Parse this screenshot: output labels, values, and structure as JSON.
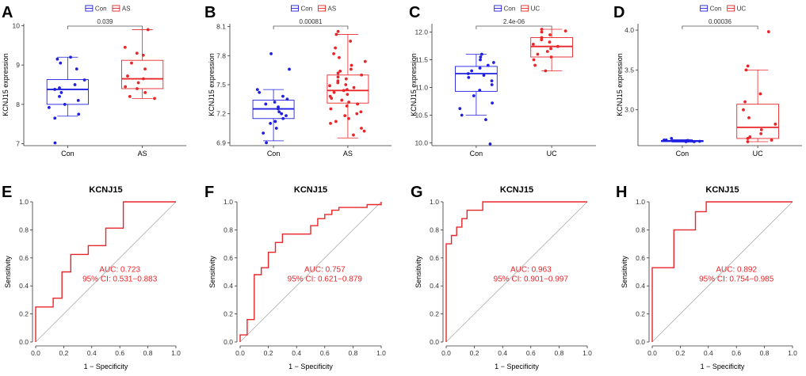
{
  "colors": {
    "con": "#1f1fe0",
    "case": "#e8262a",
    "diag": "#aaaaaa",
    "axis": "#333333"
  },
  "chart_data": [
    {
      "type": "box",
      "panel": "A",
      "title": "",
      "ylabel": "KCNJ15 expression",
      "legend": [
        "Con",
        "AS"
      ],
      "categories": [
        "Con",
        "AS"
      ],
      "ylim": [
        6.95,
        10.05
      ],
      "yticks": [
        7,
        8,
        9,
        10
      ],
      "ytick_labels": [
        "7",
        "8",
        "9",
        "10"
      ],
      "pvalue": "0.039",
      "groups": [
        {
          "name": "Con",
          "box": {
            "q1": 8.0,
            "median": 8.38,
            "q3": 8.63,
            "whisker_low": 7.7,
            "whisker_high": 9.2
          },
          "points": [
            7.02,
            7.65,
            7.75,
            7.92,
            8.0,
            8.1,
            8.2,
            8.3,
            8.38,
            8.42,
            8.5,
            8.62,
            8.9,
            9.05,
            9.15,
            9.2
          ]
        },
        {
          "name": "AS",
          "box": {
            "q1": 8.4,
            "median": 8.65,
            "q3": 9.12,
            "whisker_low": 8.15,
            "whisker_high": 9.9
          },
          "points": [
            8.15,
            8.2,
            8.3,
            8.4,
            8.45,
            8.55,
            8.65,
            8.72,
            8.9,
            9.05,
            9.25,
            9.3,
            9.45,
            9.9
          ]
        }
      ]
    },
    {
      "type": "box",
      "panel": "B",
      "title": "",
      "ylabel": "KCNJ15 expression",
      "legend": [
        "Con",
        "AS"
      ],
      "categories": [
        "Con",
        "AS"
      ],
      "ylim": [
        6.87,
        8.13
      ],
      "yticks": [
        6.9,
        7.2,
        7.5,
        7.8,
        8.1
      ],
      "ytick_labels": [
        "6.9",
        "7.2",
        "7.5",
        "7.8",
        "8.1"
      ],
      "pvalue": "0.00081",
      "groups": [
        {
          "name": "Con",
          "box": {
            "q1": 7.15,
            "median": 7.25,
            "q3": 7.34,
            "whisker_low": 6.92,
            "whisker_high": 7.45
          },
          "points": [
            6.9,
            7.0,
            7.05,
            7.1,
            7.12,
            7.15,
            7.18,
            7.2,
            7.22,
            7.25,
            7.27,
            7.3,
            7.32,
            7.35,
            7.38,
            7.42,
            7.45,
            7.66,
            7.82
          ]
        },
        {
          "name": "AS",
          "box": {
            "q1": 7.31,
            "median": 7.44,
            "q3": 7.6,
            "whisker_low": 6.95,
            "whisker_high": 8.02
          },
          "points": [
            6.98,
            7.02,
            7.05,
            7.1,
            7.12,
            7.15,
            7.18,
            7.2,
            7.22,
            7.25,
            7.28,
            7.3,
            7.32,
            7.34,
            7.36,
            7.38,
            7.4,
            7.42,
            7.44,
            7.45,
            7.47,
            7.49,
            7.5,
            7.52,
            7.54,
            7.56,
            7.58,
            7.6,
            7.62,
            7.64,
            7.66,
            7.7,
            7.74,
            7.78,
            7.82,
            7.88,
            7.95,
            8.02,
            8.05
          ]
        }
      ]
    },
    {
      "type": "box",
      "panel": "C",
      "title": "",
      "ylabel": "KCNJ15 expression",
      "legend": [
        "Con",
        "UC"
      ],
      "categories": [
        "Con",
        "UC"
      ],
      "ylim": [
        9.95,
        12.15
      ],
      "yticks": [
        10.0,
        10.5,
        11.0,
        11.5,
        12.0
      ],
      "ytick_labels": [
        "10.0",
        "10.5",
        "11.0",
        "11.5",
        "12.0"
      ],
      "pvalue": "2.4e-06",
      "groups": [
        {
          "name": "Con",
          "box": {
            "q1": 10.93,
            "median": 11.25,
            "q3": 11.38,
            "whisker_low": 10.5,
            "whisker_high": 11.6
          },
          "points": [
            9.98,
            10.42,
            10.5,
            10.62,
            10.72,
            10.85,
            10.95,
            11.05,
            11.12,
            11.18,
            11.22,
            11.25,
            11.3,
            11.35,
            11.4,
            11.45,
            11.5,
            11.55,
            11.6
          ]
        },
        {
          "name": "UC",
          "box": {
            "q1": 11.55,
            "median": 11.74,
            "q3": 11.9,
            "whisker_low": 11.3,
            "whisker_high": 12.05
          },
          "points": [
            11.3,
            11.4,
            11.5,
            11.55,
            11.6,
            11.65,
            11.7,
            11.74,
            11.78,
            11.82,
            11.86,
            11.9,
            11.95,
            12.0,
            12.02,
            12.05
          ]
        }
      ]
    },
    {
      "type": "box",
      "panel": "D",
      "title": "",
      "ylabel": "KCNJ15 expression",
      "legend": [
        "Con",
        "UC"
      ],
      "categories": [
        "Con",
        "UC"
      ],
      "ylim": [
        2.55,
        4.08
      ],
      "yticks": [
        3.0,
        3.5,
        4.0
      ],
      "ytick_labels": [
        "3.0",
        "3.5",
        "4.0"
      ],
      "pvalue": "0.00036",
      "groups": [
        {
          "name": "Con",
          "box": {
            "q1": 2.6,
            "median": 2.61,
            "q3": 2.615,
            "whisker_low": 2.595,
            "whisker_high": 2.625
          },
          "points": [
            2.6,
            2.6,
            2.605,
            2.61,
            2.61,
            2.615,
            2.62,
            2.62,
            2.64
          ]
        },
        {
          "name": "UC",
          "box": {
            "q1": 2.64,
            "median": 2.78,
            "q3": 3.07,
            "whisker_low": 2.6,
            "whisker_high": 3.5
          },
          "points": [
            2.6,
            2.62,
            2.64,
            2.66,
            2.7,
            2.75,
            2.82,
            2.9,
            3.0,
            3.1,
            3.2,
            3.5,
            3.55,
            3.98
          ]
        }
      ]
    },
    {
      "type": "roc",
      "panel": "E",
      "title": "KCNJ15",
      "xlabel": "1 − Specificity",
      "ylabel": "Sensitivity",
      "xlim": [
        0,
        1
      ],
      "ylim": [
        0,
        1
      ],
      "ticks": [
        0.0,
        0.2,
        0.4,
        0.6,
        0.8,
        1.0
      ],
      "tick_labels": [
        "0.0",
        "0.2",
        "0.4",
        "0.6",
        "0.8",
        "1.0"
      ],
      "auc_text": "AUC: 0.723",
      "ci_text": "95% CI: 0.531−0.883",
      "fpr": [
        0,
        0,
        0.125,
        0.125,
        0.1875,
        0.1875,
        0.25,
        0.25,
        0.375,
        0.375,
        0.5,
        0.5,
        0.5625,
        0.5625,
        0.625,
        0.625,
        1.0
      ],
      "tpr": [
        0,
        0.25,
        0.25,
        0.3125,
        0.3125,
        0.5,
        0.5,
        0.625,
        0.625,
        0.6875,
        0.6875,
        0.8125,
        0.8125,
        0.8125,
        0.8125,
        1.0,
        1.0
      ]
    },
    {
      "type": "roc",
      "panel": "F",
      "title": "KCNJ15",
      "xlabel": "1 − Specificity",
      "ylabel": "Sensitivity",
      "xlim": [
        0,
        1
      ],
      "ylim": [
        0,
        1
      ],
      "ticks": [
        0.0,
        0.2,
        0.4,
        0.6,
        0.8,
        1.0
      ],
      "tick_labels": [
        "0.0",
        "0.2",
        "0.4",
        "0.6",
        "0.8",
        "1.0"
      ],
      "auc_text": "AUC: 0.757",
      "ci_text": "95% CI: 0.621−0.879",
      "fpr": [
        0,
        0,
        0.05,
        0.05,
        0.1,
        0.1,
        0.15,
        0.15,
        0.2,
        0.2,
        0.25,
        0.25,
        0.3,
        0.3,
        0.5,
        0.5,
        0.55,
        0.55,
        0.6,
        0.6,
        0.65,
        0.65,
        0.7,
        0.7,
        0.9,
        0.9,
        1.0,
        1.0
      ],
      "tpr": [
        0,
        0.05,
        0.05,
        0.16,
        0.16,
        0.48,
        0.48,
        0.53,
        0.53,
        0.64,
        0.64,
        0.71,
        0.71,
        0.77,
        0.77,
        0.83,
        0.83,
        0.88,
        0.88,
        0.91,
        0.91,
        0.94,
        0.94,
        0.96,
        0.96,
        0.98,
        0.98,
        1.0
      ]
    },
    {
      "type": "roc",
      "panel": "G",
      "title": "KCNJ15",
      "xlabel": "1 − Specificity",
      "ylabel": "Sensitivity",
      "xlim": [
        0,
        1
      ],
      "ylim": [
        0,
        1
      ],
      "ticks": [
        0.0,
        0.2,
        0.4,
        0.6,
        0.8,
        1.0
      ],
      "tick_labels": [
        "0.0",
        "0.2",
        "0.4",
        "0.6",
        "0.8",
        "1.0"
      ],
      "auc_text": "AUC: 0.963",
      "ci_text": "95% CI: 0.901−0.997",
      "fpr": [
        0,
        0,
        0.037,
        0.037,
        0.074,
        0.074,
        0.111,
        0.111,
        0.148,
        0.148,
        0.259,
        0.259,
        1.0
      ],
      "tpr": [
        0,
        0.7,
        0.7,
        0.76,
        0.76,
        0.82,
        0.82,
        0.88,
        0.88,
        0.94,
        0.94,
        1.0,
        1.0
      ]
    },
    {
      "type": "roc",
      "panel": "H",
      "title": "KCNJ15",
      "xlabel": "1 − Specificity",
      "ylabel": "Sensitivity",
      "xlim": [
        0,
        1
      ],
      "ylim": [
        0,
        1
      ],
      "ticks": [
        0.0,
        0.2,
        0.4,
        0.6,
        0.8,
        1.0
      ],
      "tick_labels": [
        "0.0",
        "0.2",
        "0.4",
        "0.6",
        "0.8",
        "1.0"
      ],
      "auc_text": "AUC: 0.892",
      "ci_text": "95% CI: 0.754−0.985",
      "fpr": [
        0,
        0,
        0.154,
        0.154,
        0.308,
        0.308,
        0.385,
        0.385,
        1.0
      ],
      "tpr": [
        0,
        0.53,
        0.53,
        0.8,
        0.8,
        0.93,
        0.93,
        1.0,
        1.0
      ]
    }
  ]
}
